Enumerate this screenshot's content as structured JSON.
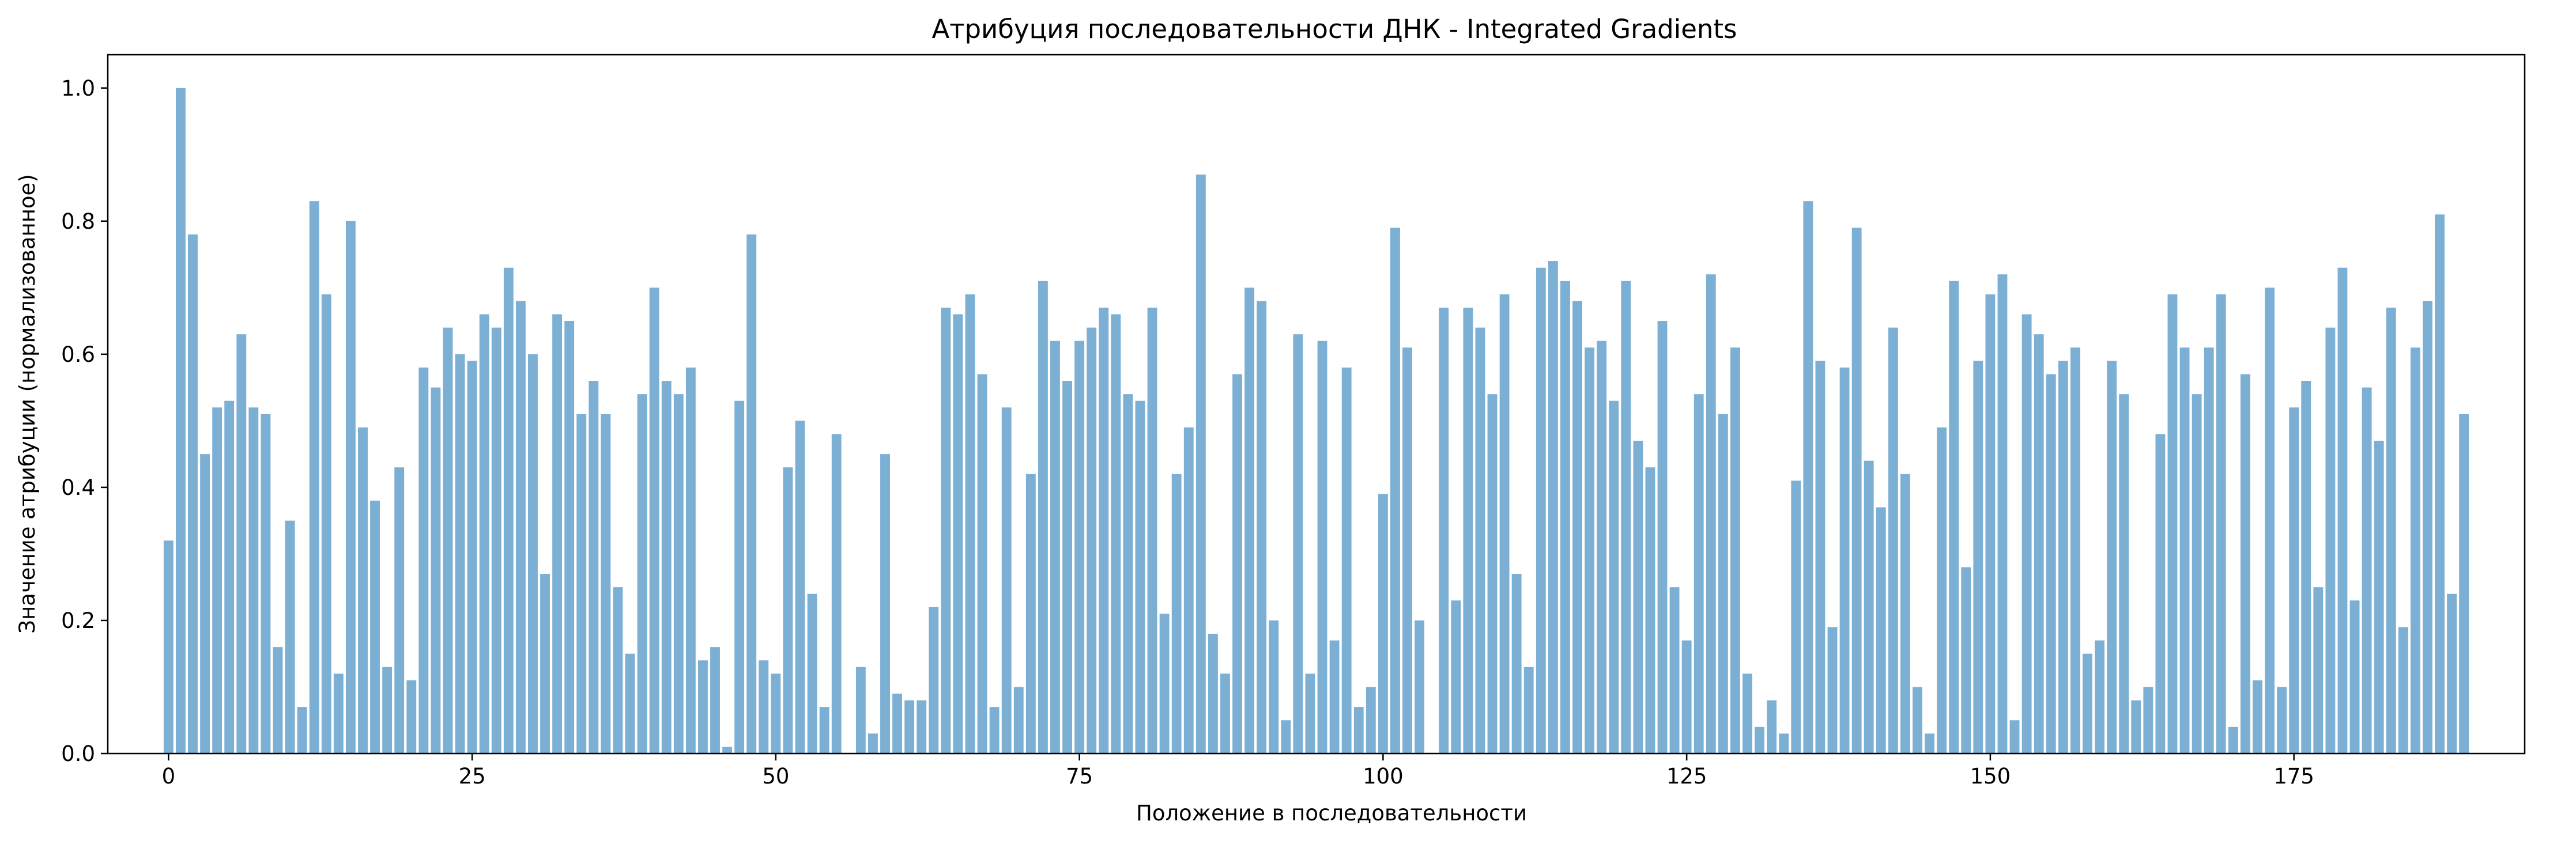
{
  "chart_data": {
    "type": "bar",
    "title": "Атрибуция последовательности ДНК - Integrated Gradients",
    "xlabel": "Положение в последовательности",
    "ylabel": "Значение атрибуции (нормализованное)",
    "xlim": [
      -5,
      194
    ],
    "ylim": [
      0,
      1.05
    ],
    "xticks": [
      0,
      25,
      50,
      75,
      100,
      125,
      150,
      175
    ],
    "yticks": [
      0.0,
      0.2,
      0.4,
      0.6,
      0.8,
      1.0
    ],
    "bar_color": "#7bafd4",
    "grid": false,
    "values": [
      0.32,
      1.0,
      0.78,
      0.45,
      0.52,
      0.53,
      0.63,
      0.52,
      0.51,
      0.16,
      0.35,
      0.07,
      0.83,
      0.69,
      0.12,
      0.8,
      0.49,
      0.38,
      0.13,
      0.43,
      0.11,
      0.58,
      0.55,
      0.64,
      0.6,
      0.59,
      0.66,
      0.64,
      0.73,
      0.68,
      0.6,
      0.27,
      0.66,
      0.65,
      0.51,
      0.56,
      0.51,
      0.25,
      0.15,
      0.54,
      0.7,
      0.56,
      0.54,
      0.58,
      0.14,
      0.16,
      0.01,
      0.53,
      0.78,
      0.14,
      0.12,
      0.43,
      0.5,
      0.24,
      0.07,
      0.48,
      0.0,
      0.13,
      0.03,
      0.45,
      0.09,
      0.08,
      0.08,
      0.22,
      0.67,
      0.66,
      0.69,
      0.57,
      0.07,
      0.52,
      0.1,
      0.42,
      0.71,
      0.62,
      0.56,
      0.62,
      0.64,
      0.67,
      0.66,
      0.54,
      0.53,
      0.67,
      0.21,
      0.42,
      0.49,
      0.87,
      0.18,
      0.12,
      0.57,
      0.7,
      0.68,
      0.2,
      0.05,
      0.63,
      0.12,
      0.62,
      0.17,
      0.58,
      0.07,
      0.1,
      0.39,
      0.79,
      0.61,
      0.2,
      0.0,
      0.67,
      0.23,
      0.67,
      0.64,
      0.54,
      0.69,
      0.27,
      0.13,
      0.73,
      0.74,
      0.71,
      0.68,
      0.61,
      0.62,
      0.53,
      0.71,
      0.47,
      0.43,
      0.65,
      0.25,
      0.17,
      0.54,
      0.72,
      0.51,
      0.61,
      0.12,
      0.04,
      0.08,
      0.03,
      0.41,
      0.83,
      0.59,
      0.19,
      0.58,
      0.79,
      0.44,
      0.37,
      0.64,
      0.42,
      0.1,
      0.03,
      0.49,
      0.71,
      0.28,
      0.59,
      0.69,
      0.72,
      0.05,
      0.66,
      0.63,
      0.57,
      0.59,
      0.61,
      0.15,
      0.17,
      0.59,
      0.54,
      0.08,
      0.1,
      0.48,
      0.69,
      0.61,
      0.54,
      0.61,
      0.69,
      0.04,
      0.57,
      0.11,
      0.7,
      0.1,
      0.52,
      0.56,
      0.25,
      0.64,
      0.73,
      0.23,
      0.55,
      0.47,
      0.67,
      0.19,
      0.61,
      0.68,
      0.81,
      0.24,
      0.51
    ]
  }
}
